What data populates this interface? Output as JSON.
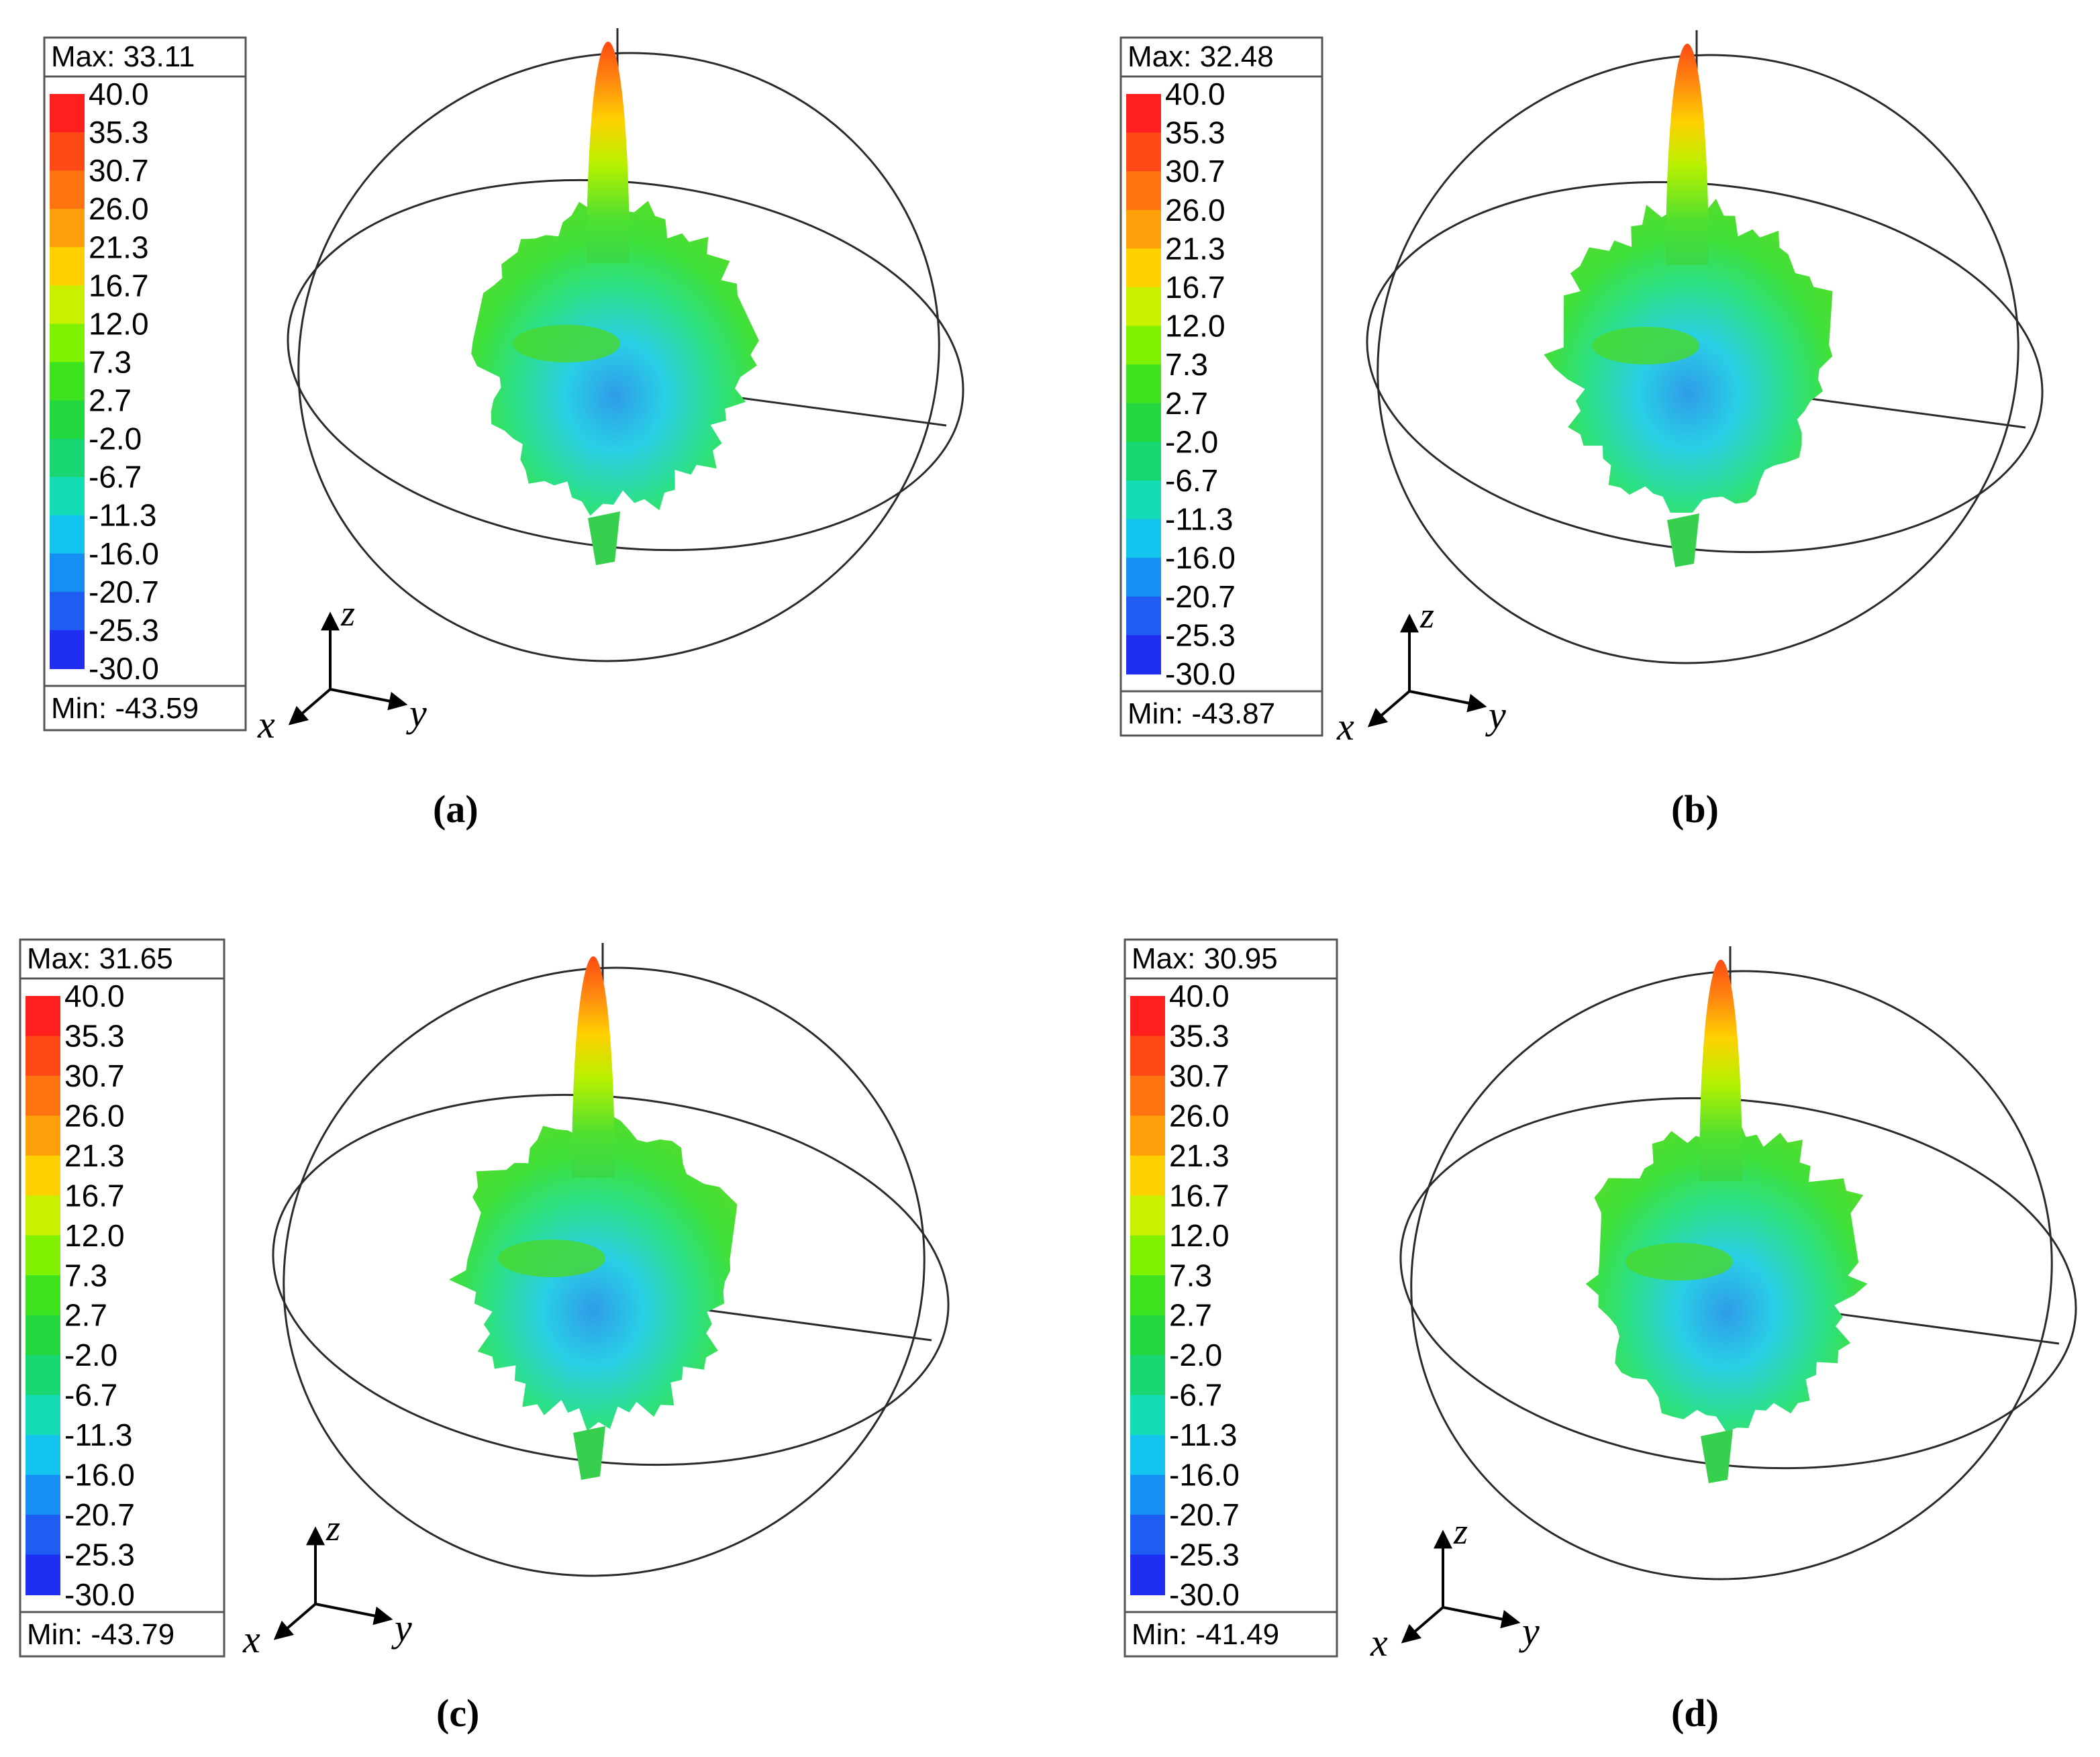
{
  "colorbar": {
    "ticks": [
      "40.0",
      "35.3",
      "30.7",
      "26.0",
      "21.3",
      "16.7",
      "12.0",
      "7.3",
      "2.7",
      "-2.0",
      "-6.7",
      "-11.3",
      "-16.0",
      "-20.7",
      "-25.3",
      "-30.0"
    ],
    "colors": [
      "#ff1f1f",
      "#ff4a17",
      "#ff7410",
      "#ffa00a",
      "#ffd000",
      "#c8f000",
      "#7ff000",
      "#3de21e",
      "#22d83e",
      "#18d671",
      "#14dcb4",
      "#12c4ee",
      "#1590f2",
      "#1e5cf2",
      "#1f2ef0",
      "#1c10e6"
    ]
  },
  "axes": {
    "x": "x",
    "y": "y",
    "z": "z"
  },
  "panels": [
    {
      "id": "a",
      "caption": "(a)",
      "max_label": "Max: 33.11",
      "min_label": "Min: -43.59",
      "max_value": 33.11,
      "min_value": -43.59
    },
    {
      "id": "b",
      "caption": "(b)",
      "max_label": "Max: 32.48",
      "min_label": "Min: -43.87",
      "max_value": 32.48,
      "min_value": -43.87
    },
    {
      "id": "c",
      "caption": "(c)",
      "max_label": "Max: 31.65",
      "min_label": "Min: -43.79",
      "max_value": 31.65,
      "min_value": -43.79
    },
    {
      "id": "d",
      "caption": "(d)",
      "max_label": "Max: 30.95",
      "min_label": "Min: -41.49",
      "max_value": 30.95,
      "min_value": -41.49
    }
  ]
}
